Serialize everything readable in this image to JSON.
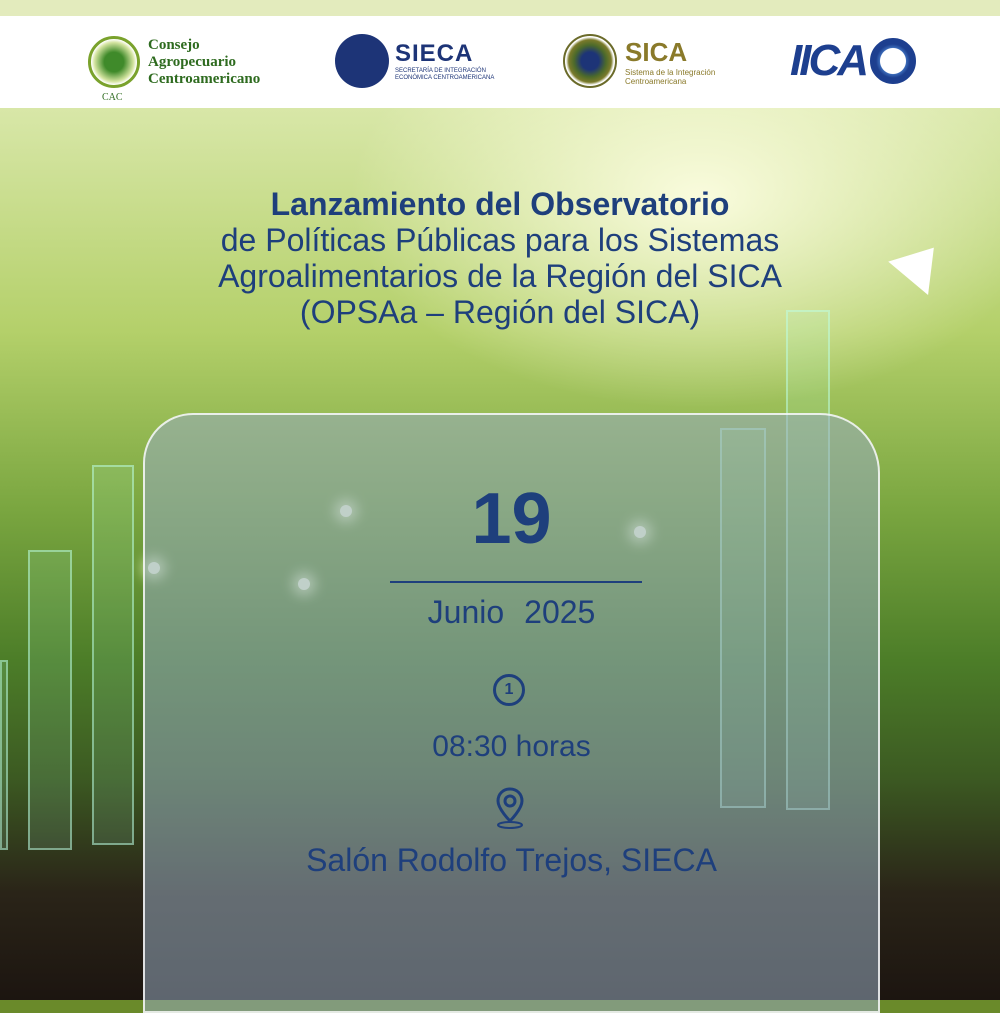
{
  "logos": {
    "cac": {
      "name_lines": [
        "Consejo",
        "Agropecuario",
        "Centroamericano"
      ],
      "abbr": "CAC"
    },
    "sieca": {
      "name": "SIECA",
      "subtitle_lines": [
        "SECRETARÍA DE INTEGRACIÓN",
        "ECONÓMICA CENTROAMERICANA"
      ]
    },
    "sica": {
      "name": "SICA",
      "subtitle_lines": [
        "Sistema de la Integración",
        "Centroamericana"
      ]
    },
    "iica": {
      "name": "IICA"
    }
  },
  "event": {
    "title_lines": [
      "Lanzamiento del Observatorio",
      "de Políticas Públicas para los Sistemas",
      "Agroalimentarios de la Región del SICA",
      "(OPSAa – Región del SICA)"
    ],
    "day": "19",
    "month": "Junio",
    "year": "2025",
    "time_icon": "clock-icon",
    "time": "08:30 horas",
    "location_icon": "map-pin-icon",
    "location": "Salón Rodolfo Trejos, SIECA"
  },
  "colors": {
    "text": "#1e3f7c",
    "header_strip": "#e3ebbd"
  }
}
